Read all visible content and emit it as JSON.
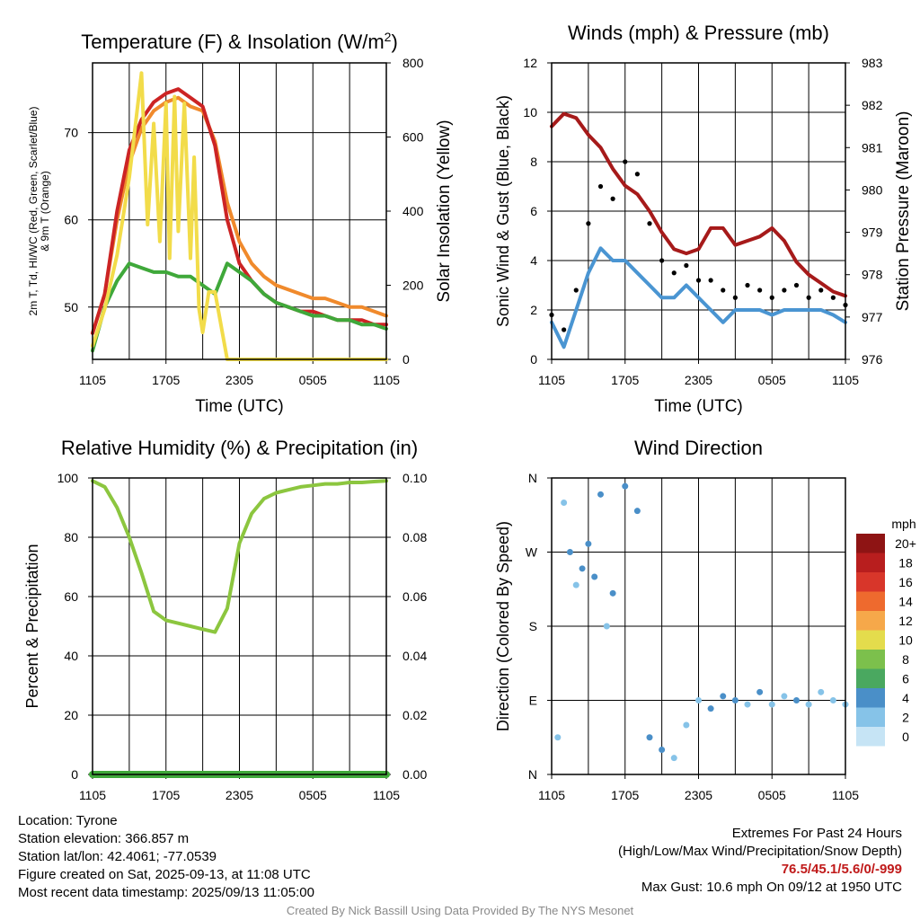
{
  "chart_data": [
    {
      "type": "line",
      "title": "Temperature (F) & Insolation (W/m2)",
      "title_main": "Temperature (F) & Insolation (W/m",
      "title_sup": "2",
      "title_end": ")",
      "xlabel": "Time (UTC)",
      "ylabel_lines": [
        "2m T, Td, HI/WC (Red, Green, Scarlet/Blue)",
        "& 9m T (Orange)"
      ],
      "ylabel_right": "Solar Insolation (Yellow)",
      "x_ticks": [
        "1105",
        "1705",
        "2305",
        "0505",
        "1105"
      ],
      "xlim": [
        0,
        24
      ],
      "ylim": [
        44,
        78
      ],
      "yticks": [
        50,
        60,
        70
      ],
      "ylim_right": [
        0,
        880
      ],
      "yticks_right": [
        0,
        200,
        400,
        600,
        800
      ],
      "grid": true,
      "series": [
        {
          "color": "#f08a2c",
          "axis": "left",
          "points": [
            [
              0,
              47
            ],
            [
              1,
              51.5
            ],
            [
              2,
              60
            ],
            [
              3,
              66.5
            ],
            [
              4,
              70.5
            ],
            [
              5,
              72.5
            ],
            [
              6,
              73.5
            ],
            [
              7,
              74
            ],
            [
              8,
              73
            ],
            [
              9,
              72.5
            ],
            [
              10,
              69
            ],
            [
              11,
              62
            ],
            [
              12,
              57.5
            ],
            [
              13,
              55
            ],
            [
              14,
              53.5
            ],
            [
              15,
              52.5
            ],
            [
              16,
              52
            ],
            [
              17,
              51.5
            ],
            [
              18,
              51
            ],
            [
              19,
              51
            ],
            [
              20,
              50.5
            ],
            [
              21,
              50
            ],
            [
              22,
              50
            ],
            [
              23,
              49.5
            ],
            [
              24,
              49
            ]
          ]
        },
        {
          "color": "#cc2424",
          "axis": "left",
          "points": [
            [
              0,
              47
            ],
            [
              1,
              51.5
            ],
            [
              2,
              61
            ],
            [
              3,
              68
            ],
            [
              4,
              71.5
            ],
            [
              5,
              73.5
            ],
            [
              6,
              74.5
            ],
            [
              7,
              75
            ],
            [
              8,
              74
            ],
            [
              9,
              73
            ],
            [
              10,
              68.5
            ],
            [
              11,
              60
            ],
            [
              12,
              55
            ],
            [
              13,
              53
            ],
            [
              14,
              51.5
            ],
            [
              15,
              50.5
            ],
            [
              16,
              50
            ],
            [
              17,
              49.5
            ],
            [
              18,
              49.5
            ],
            [
              19,
              49
            ],
            [
              20,
              48.5
            ],
            [
              21,
              48.5
            ],
            [
              22,
              48.5
            ],
            [
              23,
              48
            ],
            [
              24,
              48
            ]
          ]
        },
        {
          "color": "#3fa83a",
          "axis": "left",
          "points": [
            [
              0,
              45
            ],
            [
              1,
              50
            ],
            [
              2,
              53
            ],
            [
              3,
              55
            ],
            [
              4,
              54.5
            ],
            [
              5,
              54
            ],
            [
              6,
              54
            ],
            [
              7,
              53.5
            ],
            [
              8,
              53.5
            ],
            [
              9,
              52.5
            ],
            [
              10,
              51.5
            ],
            [
              11,
              55
            ],
            [
              12,
              54
            ],
            [
              13,
              53
            ],
            [
              14,
              51.5
            ],
            [
              15,
              50.5
            ],
            [
              16,
              50
            ],
            [
              17,
              49.5
            ],
            [
              18,
              49
            ],
            [
              19,
              49
            ],
            [
              20,
              48.5
            ],
            [
              21,
              48.5
            ],
            [
              22,
              48
            ],
            [
              23,
              48
            ],
            [
              24,
              47.5
            ]
          ]
        },
        {
          "color": "#f2dc4a",
          "axis": "right",
          "points": [
            [
              0,
              40
            ],
            [
              1,
              150
            ],
            [
              2,
              310
            ],
            [
              3,
              540
            ],
            [
              4,
              850
            ],
            [
              4.5,
              400
            ],
            [
              5,
              700
            ],
            [
              5.5,
              350
            ],
            [
              6,
              760
            ],
            [
              6.3,
              300
            ],
            [
              6.7,
              780
            ],
            [
              7,
              380
            ],
            [
              7.5,
              760
            ],
            [
              8,
              300
            ],
            [
              8.3,
              600
            ],
            [
              8.7,
              150
            ],
            [
              9,
              80
            ],
            [
              9.5,
              200
            ],
            [
              10,
              200
            ],
            [
              11,
              0
            ],
            [
              24,
              0
            ]
          ]
        }
      ]
    },
    {
      "type": "scatter",
      "title": "Winds (mph) & Pressure (mb)",
      "xlabel": "Time (UTC)",
      "ylabel": "Sonic Wind & Gust (Blue, Black)",
      "ylabel_right": "Station Pressure (Maroon)",
      "x_ticks": [
        "1105",
        "1705",
        "2305",
        "0505",
        "1105"
      ],
      "xlim": [
        0,
        24
      ],
      "ylim": [
        0,
        12
      ],
      "yticks": [
        0,
        2,
        4,
        6,
        8,
        10,
        12
      ],
      "ylim_right": [
        976,
        983
      ],
      "yticks_right": [
        976,
        977,
        978,
        979,
        980,
        981,
        982,
        983
      ],
      "grid": true,
      "series": [
        {
          "color": "#4a95d2",
          "axis": "left",
          "points": [
            [
              0,
              1.5
            ],
            [
              1,
              0.5
            ],
            [
              2,
              2
            ],
            [
              3,
              3.5
            ],
            [
              4,
              4.5
            ],
            [
              5,
              4
            ],
            [
              6,
              4
            ],
            [
              7,
              3.5
            ],
            [
              8,
              3
            ],
            [
              9,
              2.5
            ],
            [
              10,
              2.5
            ],
            [
              11,
              3
            ],
            [
              12,
              2.5
            ],
            [
              13,
              2
            ],
            [
              14,
              1.5
            ],
            [
              15,
              2
            ],
            [
              16,
              2
            ],
            [
              17,
              2
            ],
            [
              18,
              1.8
            ],
            [
              19,
              2
            ],
            [
              20,
              2
            ],
            [
              21,
              2
            ],
            [
              22,
              2
            ],
            [
              23,
              1.8
            ],
            [
              24,
              1.5
            ]
          ]
        },
        {
          "color": "#000000",
          "axis": "left",
          "points": [
            [
              0,
              1.8
            ],
            [
              1,
              1.2
            ],
            [
              2,
              2.8
            ],
            [
              3,
              5.5
            ],
            [
              4,
              7
            ],
            [
              5,
              6.5
            ],
            [
              6,
              8
            ],
            [
              7,
              7.5
            ],
            [
              8,
              5.5
            ],
            [
              9,
              4
            ],
            [
              10,
              3.5
            ],
            [
              11,
              3.8
            ],
            [
              12,
              3.2
            ],
            [
              13,
              3.2
            ],
            [
              14,
              2.8
            ],
            [
              15,
              2.5
            ],
            [
              16,
              3
            ],
            [
              17,
              2.8
            ],
            [
              18,
              2.5
            ],
            [
              19,
              2.8
            ],
            [
              20,
              3
            ],
            [
              21,
              2.5
            ],
            [
              22,
              2.8
            ],
            [
              23,
              2.5
            ],
            [
              24,
              2.2
            ]
          ]
        },
        {
          "color": "#a61a1a",
          "axis": "right",
          "points": [
            [
              0,
              981.5
            ],
            [
              1,
              981.8
            ],
            [
              2,
              981.7
            ],
            [
              3,
              981.3
            ],
            [
              4,
              981
            ],
            [
              5,
              980.5
            ],
            [
              6,
              980.1
            ],
            [
              7,
              979.9
            ],
            [
              8,
              979.5
            ],
            [
              9,
              979
            ],
            [
              10,
              978.6
            ],
            [
              11,
              978.5
            ],
            [
              12,
              978.6
            ],
            [
              13,
              979.1
            ],
            [
              14,
              979.1
            ],
            [
              15,
              978.7
            ],
            [
              16,
              978.8
            ],
            [
              17,
              978.9
            ],
            [
              18,
              979.1
            ],
            [
              19,
              978.8
            ],
            [
              20,
              978.3
            ],
            [
              21,
              978
            ],
            [
              22,
              977.8
            ],
            [
              23,
              977.6
            ],
            [
              24,
              977.5
            ]
          ]
        }
      ]
    },
    {
      "type": "line",
      "title": "Relative Humidity (%) & Precipitation (in)",
      "xlabel": "",
      "ylabel": "Percent & Precipitation",
      "x_ticks": [
        "1105",
        "1705",
        "2305",
        "0505",
        "1105"
      ],
      "xlim": [
        0,
        24
      ],
      "ylim": [
        0,
        100
      ],
      "yticks": [
        0,
        20,
        40,
        60,
        80,
        100
      ],
      "ylim_right": [
        0,
        0.1
      ],
      "yticks_right": [
        "0.00",
        "0.02",
        "0.04",
        "0.06",
        "0.08",
        "0.10"
      ],
      "grid": true,
      "series": [
        {
          "color": "#8cc63f",
          "axis": "left",
          "points": [
            [
              0,
              99
            ],
            [
              1,
              97
            ],
            [
              2,
              90
            ],
            [
              3,
              80
            ],
            [
              4,
              68
            ],
            [
              5,
              55
            ],
            [
              6,
              52
            ],
            [
              7,
              51
            ],
            [
              8,
              50
            ],
            [
              9,
              49
            ],
            [
              10,
              48
            ],
            [
              11,
              56
            ],
            [
              12,
              78
            ],
            [
              13,
              88
            ],
            [
              14,
              93
            ],
            [
              15,
              95
            ],
            [
              16,
              96
            ],
            [
              17,
              97
            ],
            [
              18,
              97.5
            ],
            [
              19,
              98
            ],
            [
              20,
              98
            ],
            [
              21,
              98.5
            ],
            [
              22,
              98.5
            ],
            [
              23,
              98.8
            ],
            [
              24,
              99
            ]
          ]
        },
        {
          "color": "#3fa83a",
          "axis": "right",
          "points": [
            [
              0,
              0
            ],
            [
              24,
              0
            ]
          ]
        }
      ]
    },
    {
      "type": "scatter",
      "title": "Wind Direction",
      "xlabel": "",
      "ylabel": "Direction (Colored By Speed)",
      "x_ticks": [
        "1105",
        "1705",
        "2305",
        "0505",
        "1105"
      ],
      "xlim": [
        0,
        24
      ],
      "yticks": [
        "N",
        "E",
        "S",
        "W",
        "N"
      ],
      "ylim": [
        0,
        360
      ],
      "grid": true,
      "legend": {
        "title": "mph",
        "placement": "right",
        "labels": [
          "0",
          "2",
          "4",
          "6",
          "8",
          "10",
          "12",
          "14",
          "16",
          "18",
          "20+"
        ],
        "colors": [
          "#c6e4f5",
          "#86c3e8",
          "#4a8fc8",
          "#4aa860",
          "#7cc04c",
          "#e4dc4c",
          "#f6a84a",
          "#ee6a2e",
          "#d8362a",
          "#b81e1e",
          "#8e1414"
        ]
      },
      "points": [
        [
          0.5,
          45,
          2
        ],
        [
          1,
          330,
          1
        ],
        [
          1.5,
          270,
          3
        ],
        [
          2,
          230,
          2
        ],
        [
          2.5,
          250,
          4
        ],
        [
          3,
          280,
          4
        ],
        [
          3.5,
          240,
          3
        ],
        [
          4,
          340,
          4
        ],
        [
          4.5,
          180,
          2
        ],
        [
          5,
          220,
          3
        ],
        [
          6,
          350,
          3
        ],
        [
          7,
          320,
          4
        ],
        [
          8,
          45,
          3
        ],
        [
          9,
          30,
          3
        ],
        [
          10,
          20,
          2
        ],
        [
          11,
          60,
          2
        ],
        [
          12,
          90,
          2
        ],
        [
          13,
          80,
          3
        ],
        [
          14,
          95,
          3
        ],
        [
          15,
          90,
          3
        ],
        [
          16,
          85,
          2
        ],
        [
          17,
          100,
          3
        ],
        [
          18,
          85,
          2
        ],
        [
          19,
          95,
          2
        ],
        [
          20,
          90,
          3
        ],
        [
          21,
          85,
          2
        ],
        [
          22,
          100,
          2
        ],
        [
          23,
          90,
          1
        ],
        [
          24,
          85,
          2
        ]
      ]
    }
  ],
  "station": {
    "location": "Location: Tyrone",
    "elevation": "Station elevation: 366.857 m",
    "latlon": "Station lat/lon: 42.4061; -77.0539",
    "created": "Figure created on Sat, 2025-09-13, at 11:08 UTC",
    "recent": "Most recent data timestamp: 2025/09/13 11:05:00"
  },
  "extremes": {
    "heading": "Extremes For Past 24 Hours",
    "subheading": "(High/Low/Max Wind/Precipitation/Snow Depth)",
    "values": "76.5/45.1/5.6/0/-999",
    "max_gust": "Max Gust: 10.6 mph On 09/12 at 1950 UTC"
  },
  "credit": "Created By Nick Bassill Using Data Provided By The NYS Mesonet",
  "colors": {
    "grid": "#000000",
    "axis": "#000000",
    "credit": "#8a8a8a",
    "extremes": "#c01a1a"
  }
}
